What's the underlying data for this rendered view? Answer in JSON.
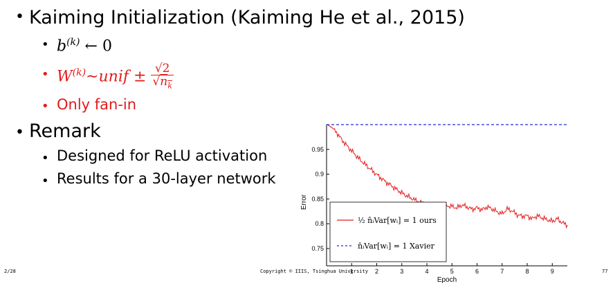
{
  "slide": {
    "title": "Kaiming Initialization (Kaiming He et al., 2015)",
    "bias_rule_lhs": "b",
    "bias_rule_sup": "(k)",
    "bias_rule_rhs": "← 0",
    "weight_rule_lhs": "W",
    "weight_rule_sup": "(k)",
    "weight_rule_mid": "~unif ±",
    "weight_rule_num": "√2",
    "weight_rule_den_root": "√",
    "weight_rule_den_base": "n",
    "weight_rule_den_sub": "k",
    "fanin_note": "Only fan-in",
    "remark_heading": "Remark",
    "remark_items": [
      "Designed for ReLU activation",
      "Results for a 30-layer network"
    ],
    "footer_left": "2/28",
    "footer_center": "Copyright © IIIS, Tsinghua University",
    "footer_right": "77",
    "colors": {
      "accent_red": "#e31b1b",
      "xavier_blue": "#1c2bd9"
    }
  },
  "chart_data": {
    "type": "line",
    "xlabel": "Epoch",
    "ylabel": "Error",
    "xlim": [
      0,
      9.6
    ],
    "ylim": [
      0.715,
      1.0
    ],
    "xticks": [
      1,
      2,
      3,
      4,
      5,
      6,
      7,
      8,
      9
    ],
    "yticks": [
      0.75,
      0.8,
      0.85,
      0.9,
      0.95
    ],
    "grid": false,
    "legend_position": "bottom-left",
    "series": [
      {
        "name": "ours",
        "legend_math": "½ n̂ᵢVar[wᵢ] = 1",
        "color": "#e31b1b",
        "style": "solid",
        "x": [
          0,
          0.2,
          0.4,
          0.6,
          0.8,
          1.0,
          1.2,
          1.4,
          1.6,
          1.8,
          2.0,
          2.2,
          2.4,
          2.6,
          2.8,
          3.0,
          3.2,
          3.4,
          3.6,
          3.8,
          4.0,
          4.2,
          4.4,
          4.6,
          4.8,
          5.0,
          5.2,
          5.4,
          5.6,
          5.8,
          6.0,
          6.2,
          6.4,
          6.6,
          6.8,
          7.0,
          7.2,
          7.4,
          7.6,
          7.8,
          8.0,
          8.2,
          8.4,
          8.6,
          8.8,
          9.0,
          9.2,
          9.4,
          9.6
        ],
        "y": [
          1.0,
          0.995,
          0.984,
          0.97,
          0.958,
          0.947,
          0.936,
          0.926,
          0.917,
          0.908,
          0.899,
          0.891,
          0.883,
          0.876,
          0.869,
          0.862,
          0.856,
          0.851,
          0.846,
          0.842,
          0.838,
          0.835,
          0.832,
          0.83,
          0.836,
          0.835,
          0.832,
          0.838,
          0.834,
          0.829,
          0.832,
          0.828,
          0.834,
          0.83,
          0.824,
          0.82,
          0.83,
          0.826,
          0.818,
          0.815,
          0.816,
          0.81,
          0.816,
          0.812,
          0.808,
          0.805,
          0.81,
          0.802,
          0.797
        ]
      },
      {
        "name": "Xavier",
        "legend_math": "n̂ᵢVar[wᵢ] = 1",
        "color": "#1c2bd9",
        "style": "dashed",
        "x": [
          0,
          9.6
        ],
        "y": [
          1.0,
          1.0
        ]
      }
    ]
  }
}
